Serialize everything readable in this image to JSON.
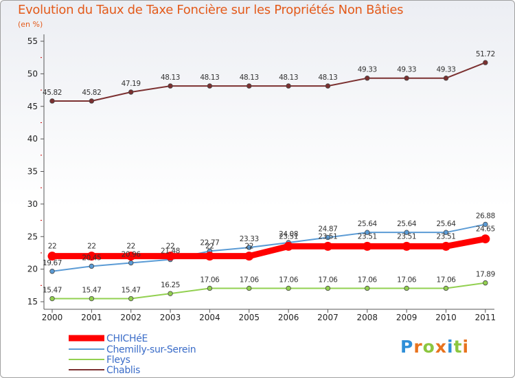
{
  "chart_data": {
    "type": "line",
    "title": "Evolution du Taux de Taxe Foncière sur les Propriétés Non Bâties",
    "subtitle": "(en %)",
    "categories": [
      "2000",
      "2001",
      "2002",
      "2003",
      "2004",
      "2005",
      "2006",
      "2007",
      "2008",
      "2009",
      "2010",
      "2011"
    ],
    "yticks": [
      "15",
      "20",
      "25",
      "30",
      "35",
      "40",
      "45",
      "50",
      "55"
    ],
    "ylim": [
      15,
      55
    ],
    "series": [
      {
        "name": "CHICHéE",
        "color": "#ff0000",
        "values": [
          22,
          22,
          22,
          22,
          22,
          22,
          23.51,
          23.51,
          23.51,
          23.51,
          23.51,
          24.65
        ],
        "labels": [
          "22",
          "22",
          "22",
          "22",
          "22",
          "22",
          "23.51",
          "23.51",
          "23.51",
          "23.51",
          "23.51",
          "24.65"
        ]
      },
      {
        "name": "Chemilly-sur-Serein",
        "color": "#5b9bd5",
        "values": [
          19.67,
          20.45,
          20.96,
          21.48,
          22.77,
          23.33,
          24.08,
          24.87,
          25.64,
          25.64,
          25.64,
          26.88
        ],
        "labels": [
          "19.67",
          "20.45",
          "20.96",
          "21.48",
          "22.77",
          "23.33",
          "24.08",
          "24.87",
          "25.64",
          "25.64",
          "25.64",
          "26.88"
        ]
      },
      {
        "name": "Fleys",
        "color": "#92d050",
        "values": [
          15.47,
          15.47,
          15.47,
          16.25,
          17.06,
          17.06,
          17.06,
          17.06,
          17.06,
          17.06,
          17.06,
          17.89
        ],
        "labels": [
          "15.47",
          "15.47",
          "15.47",
          "16.25",
          "17.06",
          "17.06",
          "17.06",
          "17.06",
          "17.06",
          "17.06",
          "17.06",
          "17.89"
        ]
      },
      {
        "name": "Chablis",
        "color": "#7b3030",
        "values": [
          45.82,
          45.82,
          47.19,
          48.13,
          48.13,
          48.13,
          48.13,
          48.13,
          49.33,
          49.33,
          49.33,
          51.72
        ],
        "labels": [
          "45.82",
          "45.82",
          "47.19",
          "48.13",
          "48.13",
          "48.13",
          "48.13",
          "48.13",
          "49.33",
          "49.33",
          "49.33",
          "51.72"
        ]
      }
    ],
    "legend_position": "bottom-left",
    "grid": false
  },
  "logo": {
    "text": "Proxiti",
    "letters": [
      "P",
      "r",
      "o",
      "x",
      "i",
      "t",
      "i"
    ],
    "colors": [
      "#2f8fd8",
      "#e8731e",
      "#8cc63f",
      "#e8731e",
      "#2f8fd8",
      "#8cc63f",
      "#e8731e"
    ]
  }
}
